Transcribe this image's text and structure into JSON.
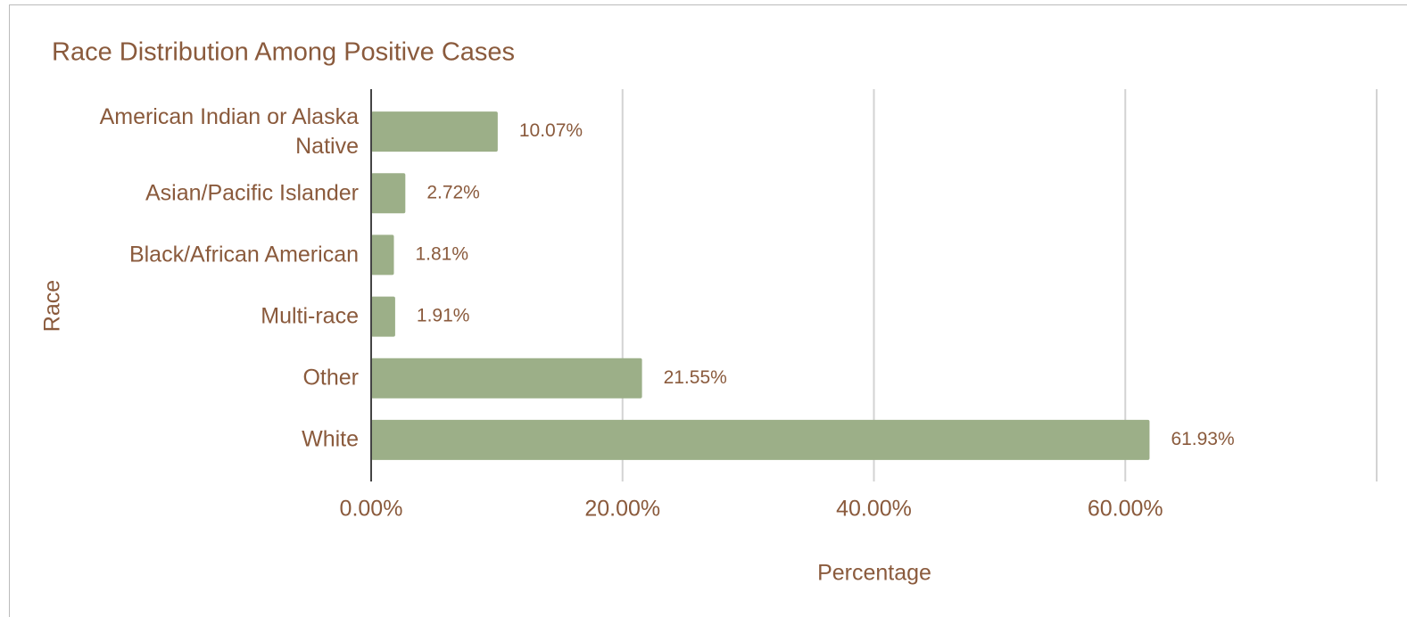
{
  "chart_data": {
    "type": "bar",
    "orientation": "horizontal",
    "title": "Race Distribution Among Positive Cases",
    "xlabel": "Percentage",
    "ylabel": "Race",
    "categories": [
      "American Indian or Alaska Native",
      "Asian/Pacific Islander",
      "Black/African American",
      "Multi-race",
      "Other",
      "White"
    ],
    "values": [
      10.07,
      2.72,
      1.81,
      1.91,
      21.55,
      61.93
    ],
    "value_labels": [
      "10.07%",
      "2.72%",
      "1.81%",
      "1.91%",
      "21.55%",
      "61.93%"
    ],
    "color": "#9caf88",
    "xlim": [
      0,
      80
    ],
    "xticks": [
      {
        "value": 0,
        "label": "0.00%"
      },
      {
        "value": 20,
        "label": "20.00%"
      },
      {
        "value": 40,
        "label": "40.00%"
      },
      {
        "value": 60,
        "label": "60.00%"
      }
    ],
    "grid": true
  }
}
